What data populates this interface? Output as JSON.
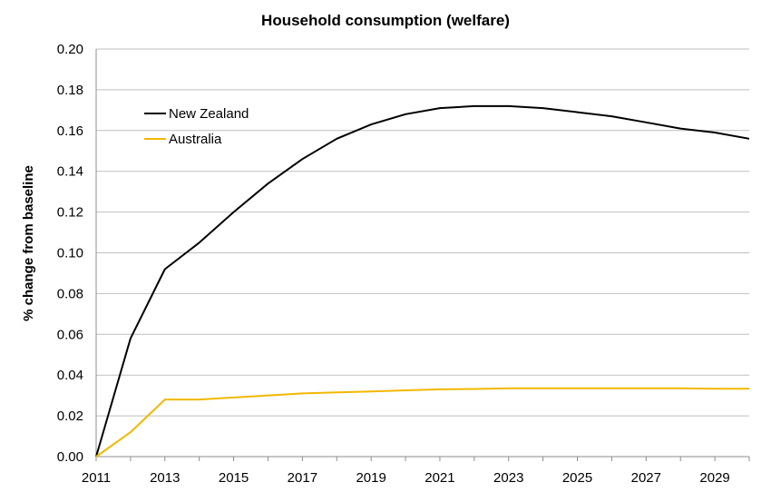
{
  "chart_data": {
    "type": "line",
    "title": "Household consumption (welfare)",
    "xlabel": "",
    "ylabel": "% change from baseline",
    "xlim": [
      2011,
      2030
    ],
    "ylim": [
      0,
      0.2
    ],
    "grid": true,
    "legend_position": "top-left",
    "x": [
      2011,
      2012,
      2013,
      2014,
      2015,
      2016,
      2017,
      2018,
      2019,
      2020,
      2021,
      2022,
      2023,
      2024,
      2025,
      2026,
      2027,
      2028,
      2029,
      2030
    ],
    "x_tick_labels": [
      "2011",
      "2013",
      "2015",
      "2017",
      "2019",
      "2021",
      "2023",
      "2025",
      "2027",
      "2029"
    ],
    "y_tick_labels": [
      "0.00",
      "0.02",
      "0.04",
      "0.06",
      "0.08",
      "0.10",
      "0.12",
      "0.14",
      "0.16",
      "0.18",
      "0.20"
    ],
    "series": [
      {
        "name": "New Zealand",
        "color": "#000000",
        "values": [
          0.0,
          0.058,
          0.092,
          0.105,
          0.12,
          0.134,
          0.146,
          0.156,
          0.163,
          0.168,
          0.171,
          0.172,
          0.172,
          0.171,
          0.169,
          0.167,
          0.164,
          0.161,
          0.159,
          0.156
        ]
      },
      {
        "name": "Australia",
        "color": "#f2b800",
        "values": [
          0.0,
          0.012,
          0.028,
          0.028,
          0.029,
          0.03,
          0.031,
          0.0315,
          0.032,
          0.0325,
          0.033,
          0.0332,
          0.0335,
          0.0335,
          0.0335,
          0.0335,
          0.0335,
          0.0335,
          0.0333,
          0.0333
        ]
      }
    ]
  }
}
